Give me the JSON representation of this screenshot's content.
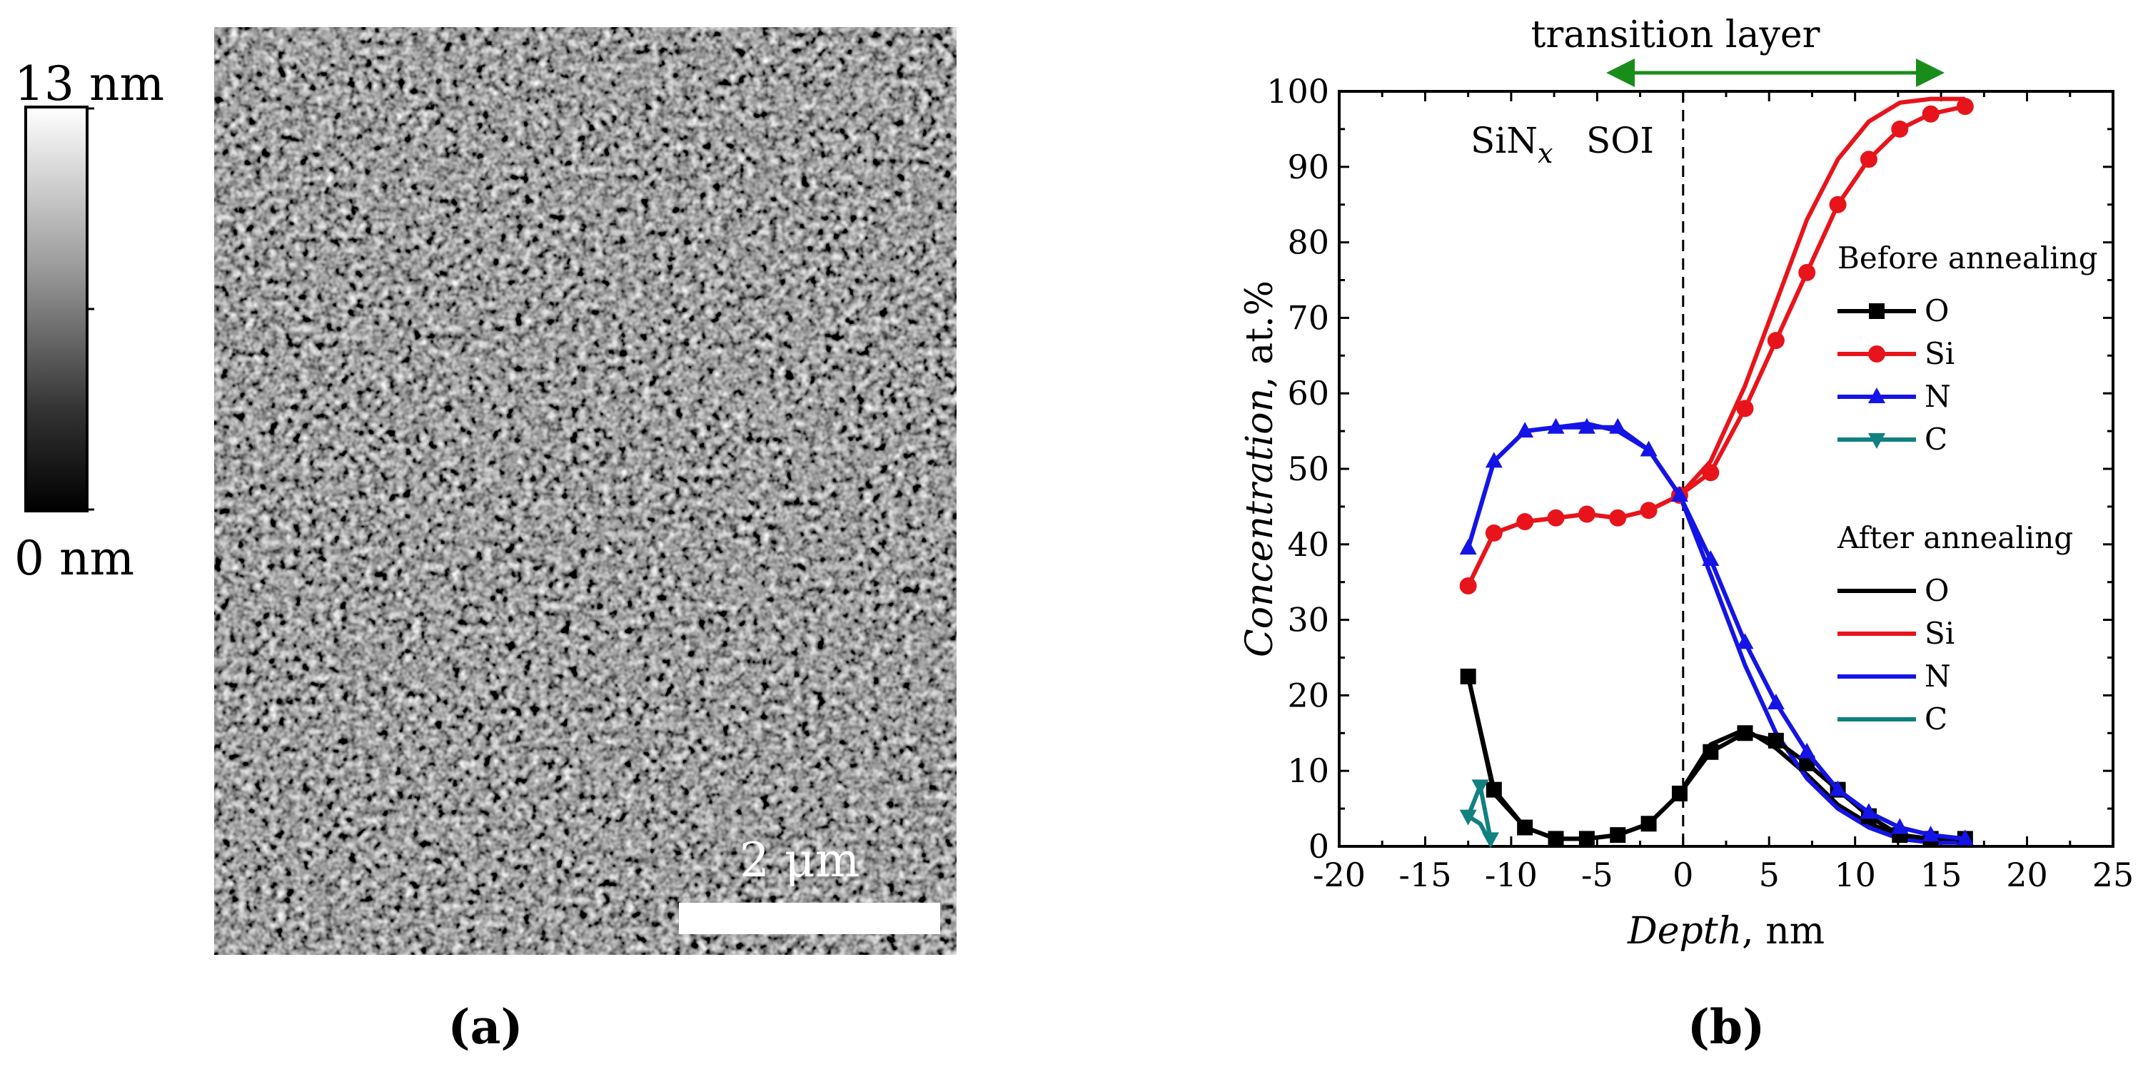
{
  "colors": {
    "O": "#000000",
    "Si": "#e8141b",
    "N": "#1414e6",
    "C": "#118080",
    "arrow": "#1a8c1a"
  },
  "panel_a": {
    "label": "(a)",
    "colorbar_max": "13 nm",
    "colorbar_min": "0 nm",
    "scale_bar": "2 μm"
  },
  "panel_b": {
    "label": "(b)",
    "annotations": {
      "transition_layer": "transition layer",
      "sinx_main": "SiN",
      "sinx_sub": "x",
      "soi": "SOI"
    },
    "legend": {
      "before_heading": "Before annealing",
      "after_heading": "After annealing",
      "before_items": [
        "O",
        "Si",
        "N",
        "C"
      ],
      "after_items": [
        "O",
        "Si",
        "N",
        "C"
      ]
    }
  },
  "chart_data": {
    "type": "line",
    "title": "",
    "xlabel_italic": "Depth",
    "xlabel_unit": ", nm",
    "ylabel_italic": "Concentration",
    "ylabel_unit": ", at.%",
    "xlim": [
      -20,
      25
    ],
    "ylim": [
      0,
      100
    ],
    "x_ticks": [
      "-20",
      "-15",
      "-10",
      "-5",
      "0",
      "5",
      "10",
      "15",
      "20",
      "25"
    ],
    "y_ticks": [
      "0",
      "10",
      "20",
      "30",
      "40",
      "50",
      "60",
      "70",
      "80",
      "90",
      "100"
    ],
    "series": [
      {
        "name": "O",
        "group": "before",
        "marker": "square",
        "x": [
          -12.5,
          -11,
          -9.2,
          -7.4,
          -5.6,
          -3.8,
          -2,
          -0.2,
          1.6,
          3.6,
          5.4,
          7.2,
          9,
          10.8,
          12.6,
          14.4,
          16.4
        ],
        "y": [
          22.5,
          7.5,
          2.5,
          1,
          1,
          1.5,
          3,
          7,
          12.5,
          15,
          14,
          11,
          7.5,
          4,
          1.5,
          1,
          1
        ]
      },
      {
        "name": "Si",
        "group": "before",
        "marker": "circle",
        "x": [
          -12.5,
          -11,
          -9.2,
          -7.4,
          -5.6,
          -3.8,
          -2,
          -0.2,
          1.6,
          3.6,
          5.4,
          7.2,
          9,
          10.8,
          12.6,
          14.4,
          16.4
        ],
        "y": [
          34.5,
          41.5,
          43,
          43.5,
          44,
          43.5,
          44.5,
          46.5,
          49.5,
          58,
          67,
          76,
          85,
          91,
          95,
          97,
          98
        ]
      },
      {
        "name": "N",
        "group": "before",
        "marker": "triangle-up",
        "x": [
          -12.5,
          -11,
          -9.2,
          -7.4,
          -5.6,
          -3.8,
          -2,
          -0.2,
          1.6,
          3.6,
          5.4,
          7.2,
          9,
          10.8,
          12.6,
          14.4,
          16.4
        ],
        "y": [
          39.5,
          51,
          55,
          55.5,
          55.5,
          55.5,
          52.5,
          46.5,
          38,
          27,
          19,
          12.5,
          7.5,
          4.5,
          2.5,
          1.5,
          1
        ]
      },
      {
        "name": "C",
        "group": "before",
        "marker": "triangle-down",
        "x": [
          -12.5,
          -11.8,
          -11.2
        ],
        "y": [
          4,
          8,
          1
        ]
      },
      {
        "name": "O",
        "group": "after",
        "marker": "none",
        "x": [
          -12.5,
          -11,
          -9.2,
          -7.4,
          -5.6,
          -3.8,
          -2,
          -0.2,
          1.6,
          3.6,
          5.4,
          7.2,
          9,
          10.8,
          12.6,
          14.4,
          16.4
        ],
        "y": [
          22.5,
          7,
          2.5,
          1,
          1,
          1.5,
          3,
          7,
          13.5,
          15.5,
          13,
          9.5,
          5.5,
          3,
          1.5,
          1,
          1
        ]
      },
      {
        "name": "Si",
        "group": "after",
        "marker": "none",
        "x": [
          -12.5,
          -11,
          -9.2,
          -7.4,
          -5.6,
          -3.8,
          -2,
          -0.2,
          1.6,
          3.6,
          5.4,
          7.2,
          9,
          10.8,
          12.6,
          14.4,
          16.4
        ],
        "y": [
          34.5,
          41.5,
          43,
          43.5,
          44,
          43.5,
          44.5,
          46.5,
          51,
          61,
          72,
          83,
          91,
          96,
          98.5,
          99,
          99
        ]
      },
      {
        "name": "N",
        "group": "after",
        "marker": "none",
        "x": [
          -12.5,
          -11,
          -9.2,
          -7.4,
          -5.6,
          -3.8,
          -2,
          -0.2,
          1.6,
          3.6,
          5.4,
          7.2,
          9,
          10.8,
          12.6,
          14.4,
          16.4
        ],
        "y": [
          39.5,
          51,
          55,
          55.5,
          56,
          55,
          52.5,
          46.5,
          36,
          24,
          15,
          9,
          5,
          2.5,
          1,
          0.5,
          0.5
        ]
      },
      {
        "name": "C",
        "group": "after",
        "marker": "none",
        "x": [
          -12.5,
          -11.8,
          -11.2
        ],
        "y": [
          4,
          3,
          0.5
        ]
      }
    ]
  }
}
